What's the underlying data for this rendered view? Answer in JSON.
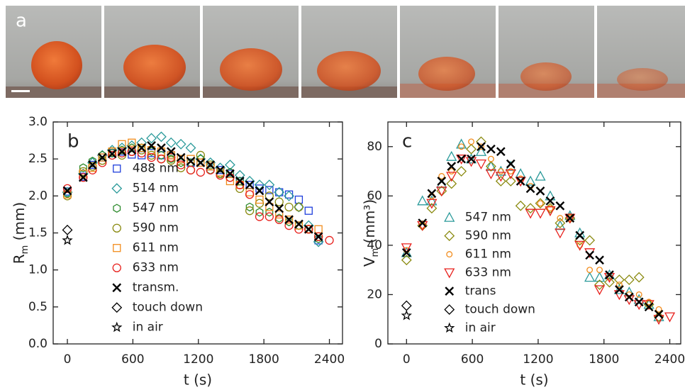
{
  "photo_panel": {
    "label": "a"
  },
  "chart_data": [
    {
      "type": "scatter",
      "panel_label": "b",
      "xlabel": "t (s)",
      "ylabel_parts": [
        "R",
        "m",
        " (mm)"
      ],
      "xlim": [
        -130,
        2520
      ],
      "ylim": [
        0,
        3
      ],
      "xticks": [
        0,
        600,
        1200,
        1800,
        2400
      ],
      "yticks": [
        {
          "value": 0,
          "label": "0.0"
        },
        {
          "value": 0.5,
          "label": "0.5"
        },
        {
          "value": 1,
          "label": "1.0"
        },
        {
          "value": 1.5,
          "label": "1.5"
        },
        {
          "value": 2,
          "label": "2.0"
        },
        {
          "value": 2.5,
          "label": "2.5"
        },
        {
          "value": 3,
          "label": "3.0"
        }
      ],
      "legend": "center-left",
      "x": [
        0,
        145,
        230,
        320,
        410,
        500,
        590,
        680,
        770,
        860,
        950,
        1040,
        1130,
        1220,
        1310,
        1400,
        1490,
        1580,
        1670,
        1760,
        1850,
        1940,
        2030,
        2120,
        2210,
        2300,
        2400
      ],
      "series": [
        {
          "name": "488 nm",
          "color": "#1f3fdc",
          "marker": "square",
          "values": [
            2.06,
            2.26,
            2.42,
            2.52,
            2.58,
            2.6,
            2.56,
            2.55,
            2.58,
            2.55,
            2.55,
            2.5,
            2.45,
            2.45,
            2.4,
            2.35,
            2.3,
            2.2,
            2.15,
            2.1,
            2.08,
            2.05,
            2.02,
            1.95,
            1.8,
            1.4,
            null
          ]
        },
        {
          "name": "514 nm",
          "color": "#2a9a9a",
          "marker": "diamond",
          "values": [
            2.05,
            2.3,
            2.45,
            2.55,
            2.62,
            2.65,
            2.68,
            2.72,
            2.78,
            2.8,
            2.72,
            2.7,
            2.65,
            2.5,
            2.45,
            2.38,
            2.42,
            2.28,
            2.2,
            2.15,
            2.15,
            2.05,
            2.0,
            1.85,
            1.6,
            1.38,
            null
          ]
        },
        {
          "name": "547 nm",
          "color": "#2e8b2e",
          "marker": "hexagon",
          "values": [
            2.03,
            2.38,
            2.47,
            2.55,
            2.58,
            2.62,
            2.65,
            2.65,
            2.6,
            2.55,
            2.5,
            2.45,
            2.45,
            2.5,
            2.35,
            2.3,
            2.32,
            2.2,
            1.85,
            1.78,
            1.78,
            1.7,
            1.65,
            1.6,
            1.55,
            1.42,
            null
          ]
        },
        {
          "name": "590 nm",
          "color": "#8a8a10",
          "marker": "circle",
          "values": [
            2.0,
            2.33,
            2.4,
            2.48,
            2.6,
            2.55,
            2.6,
            2.62,
            2.55,
            2.5,
            2.48,
            2.38,
            2.35,
            2.55,
            2.42,
            2.3,
            2.25,
            2.1,
            1.8,
            1.9,
            2.0,
            1.92,
            1.85,
            1.85,
            1.55,
            1.45,
            null
          ]
        },
        {
          "name": "611 nm",
          "color": "#f28c1c",
          "marker": "square",
          "values": [
            2.02,
            2.3,
            2.38,
            2.52,
            2.6,
            2.7,
            2.72,
            2.65,
            2.62,
            2.6,
            2.55,
            2.5,
            2.5,
            2.45,
            2.4,
            2.32,
            2.2,
            2.15,
            2.05,
            1.95,
            1.85,
            1.75,
            1.68,
            1.6,
            1.55,
            1.55,
            null
          ]
        },
        {
          "name": "633 nm",
          "color": "#e8201c",
          "marker": "circle",
          "values": [
            2.1,
            2.25,
            2.35,
            2.45,
            2.55,
            2.58,
            2.6,
            2.58,
            2.52,
            2.5,
            2.52,
            2.42,
            2.35,
            2.32,
            2.35,
            2.28,
            2.25,
            2.15,
            2.02,
            1.72,
            1.72,
            1.68,
            1.6,
            1.55,
            1.55,
            1.45,
            1.4
          ]
        },
        {
          "name": "transm.",
          "color": "#000000",
          "marker": "x",
          "values": [
            2.07,
            2.25,
            2.42,
            2.52,
            2.57,
            2.6,
            2.62,
            2.65,
            2.68,
            2.65,
            2.6,
            2.52,
            2.47,
            2.45,
            2.42,
            2.35,
            2.3,
            2.2,
            2.15,
            2.07,
            1.92,
            1.83,
            1.68,
            1.62,
            1.55,
            1.45,
            null
          ]
        },
        {
          "name": "touch down",
          "color": "#000000",
          "marker": "diamond",
          "x": [
            0
          ],
          "values": [
            1.54
          ]
        },
        {
          "name": "in air",
          "color": "#000000",
          "marker": "star",
          "x": [
            0
          ],
          "values": [
            1.4
          ]
        }
      ]
    },
    {
      "type": "scatter",
      "panel_label": "c",
      "xlabel": "t (s)",
      "ylabel_parts": [
        "V",
        "m",
        " (mm³)"
      ],
      "xlim": [
        -170,
        2500
      ],
      "ylim": [
        0,
        90
      ],
      "xticks": [
        0,
        600,
        1200,
        1800,
        2400
      ],
      "yticks": [
        0,
        20,
        40,
        60,
        80
      ],
      "legend": "lower-center",
      "x": [
        0,
        145,
        230,
        320,
        410,
        500,
        590,
        680,
        770,
        860,
        950,
        1040,
        1130,
        1220,
        1310,
        1400,
        1490,
        1580,
        1670,
        1760,
        1850,
        1940,
        2030,
        2120,
        2210,
        2300,
        2400
      ],
      "series": [
        {
          "name": "547 nm",
          "color": "#2a9a9a",
          "marker": "triangle",
          "values": [
            37,
            58,
            58,
            65,
            76,
            81,
            75,
            78,
            72,
            70,
            72,
            69,
            66,
            68,
            60,
            48,
            52,
            45,
            27,
            27,
            28,
            22,
            21,
            18,
            16,
            11,
            null
          ]
        },
        {
          "name": "590 nm",
          "color": "#8a8a10",
          "marker": "diamond",
          "values": [
            34,
            48,
            55,
            62,
            65,
            70,
            79,
            82,
            72,
            66,
            66,
            56,
            55,
            57,
            55,
            49,
            51,
            42,
            42,
            24,
            25,
            26,
            26,
            27,
            16,
            11,
            null
          ]
        },
        {
          "name": "611 nm",
          "color": "#f28c1c",
          "marker": "small-circle",
          "values": [
            38,
            48,
            60,
            68,
            70,
            80,
            82,
            80,
            75,
            70,
            70,
            67,
            64,
            57,
            55,
            51,
            51,
            40,
            30,
            30,
            27,
            24,
            20,
            20,
            17,
            14,
            null
          ]
        },
        {
          "name": "633 nm",
          "color": "#e8201c",
          "marker": "triangle-down",
          "values": [
            39,
            48,
            57,
            62,
            68,
            75,
            74,
            73,
            69,
            68,
            69,
            66,
            53,
            53,
            54,
            45,
            51,
            40,
            37,
            22,
            27,
            20,
            18,
            16,
            16,
            10,
            11
          ]
        },
        {
          "name": "trans",
          "color": "#000000",
          "marker": "x",
          "values": [
            37,
            49,
            61,
            66,
            72,
            75,
            75,
            80,
            79,
            78,
            73,
            66,
            63,
            62,
            58,
            56,
            51,
            44,
            36,
            34,
            28,
            22,
            19,
            17,
            15,
            12,
            null
          ]
        },
        {
          "name": "touch down",
          "color": "#000000",
          "marker": "diamond",
          "x": [
            0
          ],
          "values": [
            15.5
          ]
        },
        {
          "name": "in air",
          "color": "#000000",
          "marker": "star",
          "x": [
            0
          ],
          "values": [
            11.5
          ]
        }
      ]
    }
  ]
}
